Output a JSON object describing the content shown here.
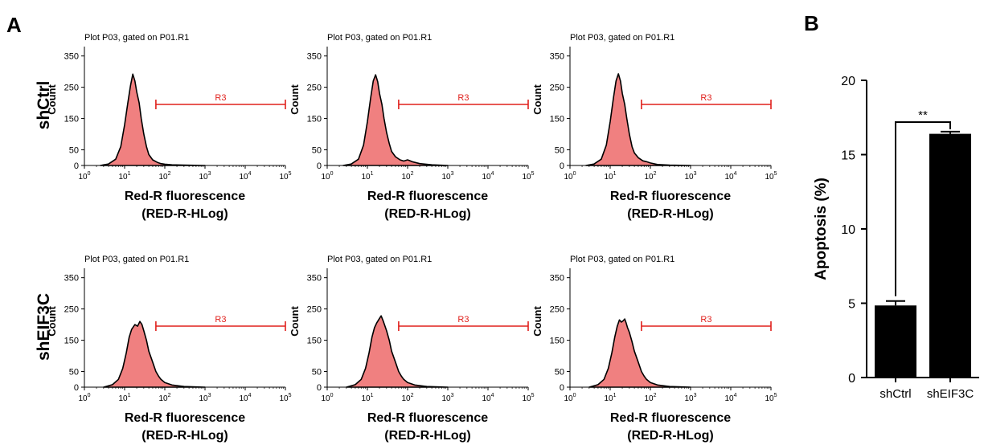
{
  "panel_labels": {
    "a": "A",
    "b": "B"
  },
  "rows": [
    {
      "label": "shCtrl",
      "ylabel": "Count"
    },
    {
      "label": "shEIF3C",
      "ylabel": "Count"
    }
  ],
  "histogram_common": {
    "title": "Plot P03, gated on P01.R1",
    "xlabel_line1": "Red-R fluorescence",
    "xlabel_line2": "(RED-R-HLog)",
    "gate_label": "R3",
    "y_ticks": [
      "0",
      "50",
      "150",
      "250",
      "350"
    ],
    "x_tick_base": "10",
    "x_tick_exps": [
      "0",
      "1",
      "2",
      "3",
      "4",
      "5"
    ],
    "fill_color": "#f08080",
    "gate_color": "#e0201c"
  },
  "bar_chart": {
    "ylabel": "Apoptosis (%)",
    "significance": "**",
    "y_ticks": [
      "0",
      "5",
      "10",
      "15",
      "20"
    ]
  },
  "chart_data": [
    {
      "type": "area",
      "id": "shCtrl-1",
      "xscale": "log",
      "xlim": [
        1,
        100000
      ],
      "ylim": [
        0,
        380
      ],
      "gate_R3": [
        60,
        100000
      ],
      "x": [
        2.5,
        4,
        6,
        8,
        10,
        12,
        14,
        16,
        18,
        20,
        23,
        26,
        30,
        35,
        40,
        50,
        65,
        80,
        100,
        150,
        300,
        1000
      ],
      "y": [
        0,
        5,
        20,
        60,
        130,
        200,
        255,
        292,
        270,
        235,
        200,
        150,
        100,
        60,
        35,
        18,
        10,
        6,
        4,
        2,
        1,
        0
      ]
    },
    {
      "type": "area",
      "id": "shCtrl-2",
      "xscale": "log",
      "xlim": [
        1,
        100000
      ],
      "ylim": [
        0,
        380
      ],
      "gate_R3": [
        60,
        100000
      ],
      "x": [
        2.5,
        4,
        6,
        8,
        10,
        12,
        14,
        16,
        18,
        20,
        23,
        26,
        30,
        35,
        40,
        50,
        65,
        80,
        100,
        130,
        200,
        400,
        1000
      ],
      "y": [
        0,
        5,
        20,
        65,
        140,
        215,
        270,
        290,
        268,
        230,
        195,
        150,
        105,
        70,
        45,
        28,
        18,
        14,
        18,
        12,
        6,
        2,
        0
      ]
    },
    {
      "type": "area",
      "id": "shCtrl-3",
      "xscale": "log",
      "xlim": [
        1,
        100000
      ],
      "ylim": [
        0,
        380
      ],
      "gate_R3": [
        60,
        100000
      ],
      "x": [
        2.5,
        4,
        6,
        8,
        10,
        12,
        14,
        16,
        18,
        20,
        23,
        26,
        30,
        35,
        40,
        50,
        65,
        80,
        100,
        150,
        300,
        1000
      ],
      "y": [
        0,
        5,
        20,
        65,
        140,
        215,
        270,
        293,
        270,
        230,
        195,
        150,
        100,
        60,
        40,
        25,
        15,
        12,
        8,
        3,
        1,
        0
      ]
    },
    {
      "type": "area",
      "id": "shEIF3C-1",
      "xscale": "log",
      "xlim": [
        1,
        100000
      ],
      "ylim": [
        0,
        380
      ],
      "gate_R3": [
        60,
        100000
      ],
      "x": [
        3,
        5,
        7,
        9,
        11,
        13,
        15,
        18,
        21,
        24,
        27,
        30,
        35,
        40,
        50,
        60,
        70,
        80,
        100,
        150,
        300,
        1000
      ],
      "y": [
        0,
        8,
        25,
        60,
        110,
        160,
        185,
        200,
        195,
        210,
        200,
        180,
        150,
        115,
        80,
        50,
        35,
        25,
        15,
        7,
        2,
        0
      ]
    },
    {
      "type": "area",
      "id": "shEIF3C-2",
      "xscale": "log",
      "xlim": [
        1,
        100000
      ],
      "ylim": [
        0,
        380
      ],
      "gate_R3": [
        60,
        100000
      ],
      "x": [
        3,
        5,
        7,
        9,
        11,
        13,
        15,
        17,
        20,
        22,
        25,
        30,
        35,
        40,
        50,
        60,
        70,
        80,
        100,
        150,
        300,
        1000
      ],
      "y": [
        0,
        8,
        25,
        60,
        110,
        160,
        190,
        205,
        220,
        228,
        210,
        180,
        150,
        115,
        80,
        50,
        35,
        25,
        15,
        7,
        2,
        0
      ]
    },
    {
      "type": "area",
      "id": "shEIF3C-3",
      "xscale": "log",
      "xlim": [
        1,
        100000
      ],
      "ylim": [
        0,
        380
      ],
      "gate_R3": [
        60,
        100000
      ],
      "x": [
        3,
        5,
        7,
        9,
        11,
        13,
        15,
        17,
        19,
        21,
        23,
        25,
        27,
        30,
        35,
        40,
        50,
        60,
        70,
        80,
        100,
        150,
        300,
        1000
      ],
      "y": [
        0,
        8,
        25,
        60,
        110,
        160,
        195,
        215,
        208,
        212,
        218,
        205,
        190,
        175,
        145,
        115,
        80,
        50,
        35,
        25,
        15,
        7,
        2,
        0
      ]
    },
    {
      "type": "bar",
      "id": "apoptosis",
      "categories": [
        "shCtrl",
        "shEIF3C"
      ],
      "values": [
        4.85,
        16.4
      ],
      "errors": [
        0.3,
        0.15
      ],
      "ylabel": "Apoptosis (%)",
      "ylim": [
        0,
        20
      ]
    }
  ]
}
